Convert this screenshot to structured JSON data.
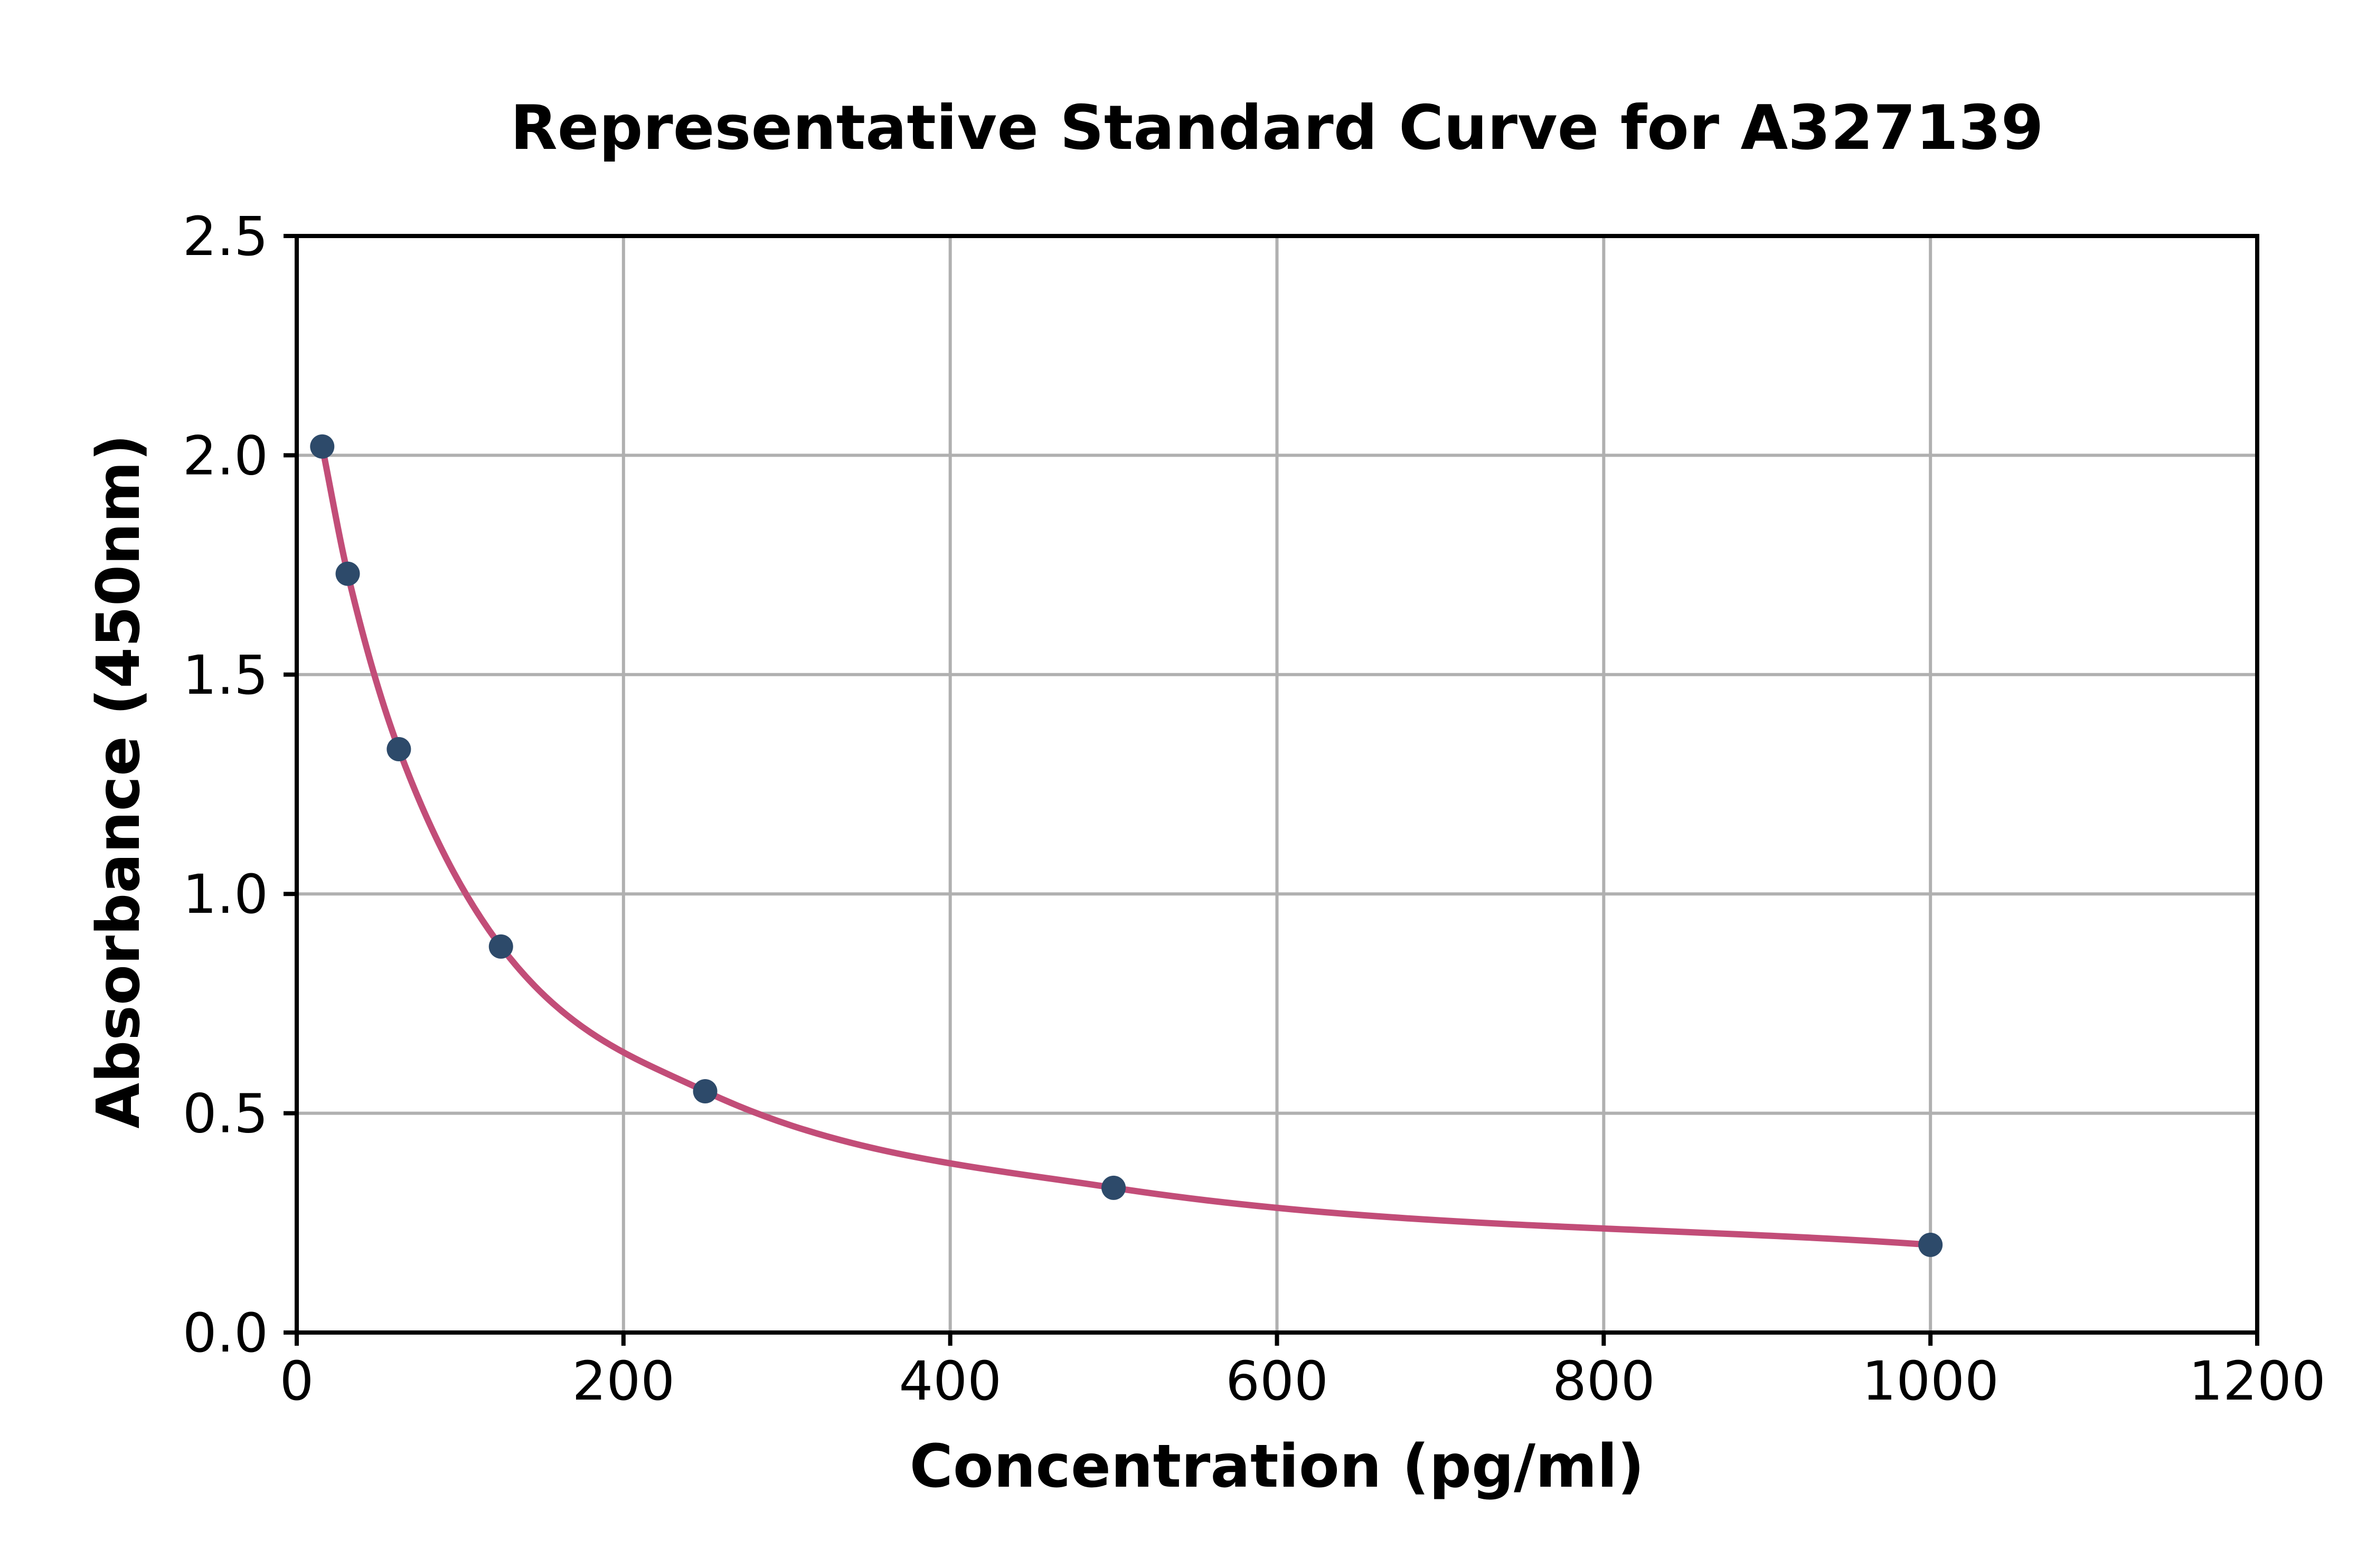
{
  "chart_data": {
    "type": "scatter",
    "title": "Representative Standard Curve for A327139",
    "xlabel": "Concentration (pg/ml)",
    "ylabel": "Absorbance (450nm)",
    "x": [
      15.6,
      31.2,
      62.5,
      125,
      250,
      500,
      1000
    ],
    "y": [
      2.02,
      1.73,
      1.33,
      0.88,
      0.55,
      0.33,
      0.2
    ],
    "xlim": [
      0,
      1200
    ],
    "ylim": [
      0,
      2.5
    ],
    "x_ticks": [
      "0",
      "200",
      "400",
      "600",
      "800",
      "1000",
      "1200"
    ],
    "x_tick_values": [
      0,
      200,
      400,
      600,
      800,
      1000,
      1200
    ],
    "y_ticks": [
      "0.0",
      "0.5",
      "1.0",
      "1.5",
      "2.0",
      "2.5"
    ],
    "y_tick_values": [
      0,
      0.5,
      1,
      1.5,
      2,
      2.5
    ],
    "grid": true,
    "legend": "none",
    "curve_type": "4PL standard curve fit through points",
    "colors": {
      "curve": "#C24D78",
      "marker": "#2D4A6A",
      "grid": "#B0B0B0",
      "axis": "#000000",
      "text": "#000000",
      "background": "#FFFFFF"
    }
  }
}
